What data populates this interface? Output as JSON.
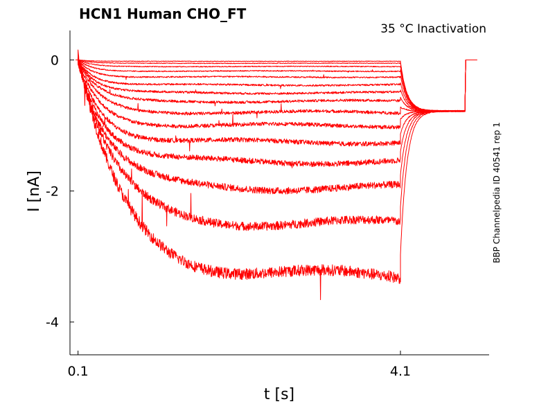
{
  "chart_data": {
    "type": "line",
    "title": "HCN1  Human  CHO_FT",
    "subtitle": "35 °C  Inactivation",
    "side_note": "BBP Channelpedia ID 40541 rep 1",
    "xlabel": "t [s]",
    "ylabel": "I [nA]",
    "xlim": [
      0.0,
      5.2
    ],
    "ylim": [
      -4.5,
      0.45
    ],
    "xticks": [
      {
        "value": 0.1,
        "label": "0.1"
      },
      {
        "value": 4.1,
        "label": "4.1"
      }
    ],
    "yticks": [
      {
        "value": 0,
        "label": "0"
      },
      {
        "value": -2,
        "label": "-2"
      },
      {
        "value": -4,
        "label": "-4"
      }
    ],
    "grid": false,
    "trace_color": "#ff0000",
    "protocol": {
      "step_on": 0.1,
      "step_off": 4.1,
      "tail_end": 4.9,
      "tail_current": -0.78
    },
    "series": [
      {
        "steady_state": -0.02
      },
      {
        "steady_state": -0.05
      },
      {
        "steady_state": -0.1
      },
      {
        "steady_state": -0.17
      },
      {
        "steady_state": -0.26
      },
      {
        "steady_state": -0.38
      },
      {
        "steady_state": -0.5
      },
      {
        "steady_state": -0.63
      },
      {
        "steady_state": -0.8
      },
      {
        "steady_state": -1.0
      },
      {
        "steady_state": -1.25
      },
      {
        "steady_state": -1.55
      },
      {
        "steady_state": -1.95
      },
      {
        "steady_state": -2.5
      },
      {
        "steady_state": -3.3
      }
    ]
  }
}
